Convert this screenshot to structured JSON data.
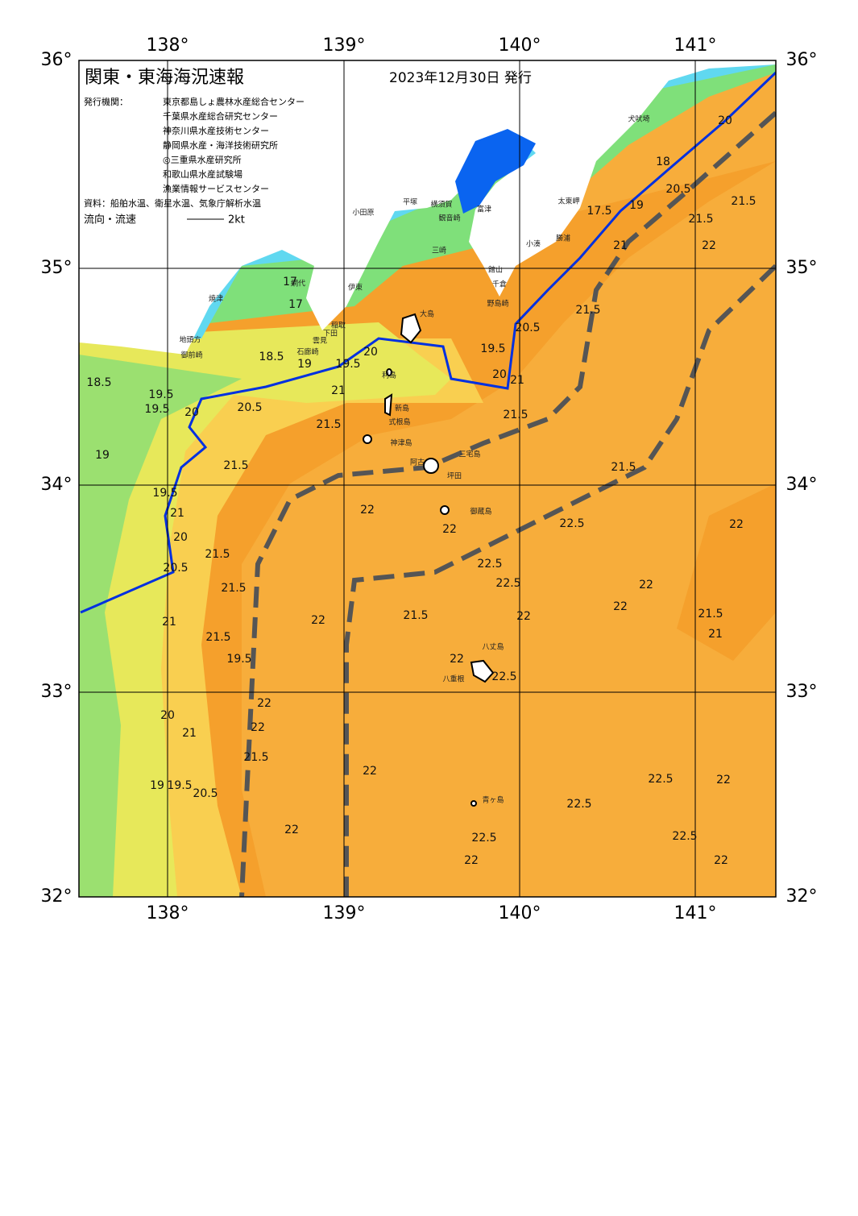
{
  "header": {
    "title": "関東・東海海況速報",
    "date": "2023年12月30日 発行",
    "issuer_label": "発行機関：",
    "issuers": [
      "東京都島しょ農林水産総合センター",
      "千葉県水産総合研究センター",
      "神奈川県水産技術センター",
      "静岡県水産・海洋技術研究所",
      "◎三重県水産研究所",
      "和歌山県水産試験場",
      "漁業情報サービスセンター"
    ],
    "source": "資料：船舶水温、衛星水温、気象庁解析水温",
    "current_label": "流向・流速",
    "current_scale": "2kt"
  },
  "axes": {
    "lon_top": [
      "138°",
      "139°",
      "140°",
      "141°"
    ],
    "lon_bottom": [
      "138°",
      "139°",
      "140°",
      "141°"
    ],
    "lat_left": [
      "36°",
      "35°",
      "34°",
      "33°",
      "32°"
    ],
    "lat_right": [
      "36°",
      "35°",
      "34°",
      "33°",
      "32°"
    ]
  },
  "places": [
    "犬吠埼",
    "太東岬",
    "勝浦",
    "小湊",
    "富津",
    "横須賀",
    "観音崎",
    "平塚",
    "小田原",
    "三崎",
    "館山",
    "千倉",
    "野島崎",
    "網代",
    "伊東",
    "稲取",
    "下田",
    "雲見",
    "石廊崎",
    "焼津",
    "地頭方",
    "御前崎",
    "大島",
    "利島",
    "新島",
    "式根島",
    "神津島",
    "三宅島",
    "阿古",
    "坪田",
    "御蔵島",
    "八丈島",
    "八重根",
    "青ヶ島"
  ],
  "contours": [
    "20",
    "18",
    "20.5",
    "17.5",
    "19",
    "21",
    "21.5",
    "21.5",
    "22",
    "21.5",
    "21",
    "20.5",
    "19.5",
    "20",
    "21.5",
    "17",
    "17",
    "18.5",
    "19",
    "19.5",
    "20",
    "21",
    "21.5",
    "20.5",
    "19.5",
    "18.5",
    "19.5",
    "20",
    "19",
    "21.5",
    "21.5",
    "22",
    "22",
    "22.5",
    "22",
    "19.5",
    "21",
    "20",
    "20.5",
    "21.5",
    "21.5",
    "22",
    "21.5",
    "19.5",
    "21",
    "21.5",
    "22",
    "22.5",
    "22.5",
    "22.5",
    "22",
    "22",
    "22",
    "21.5",
    "21",
    "22",
    "22",
    "21.5",
    "22",
    "22",
    "20",
    "21",
    "19.5",
    "20.5",
    "19",
    "22.5",
    "22.5",
    "22",
    "22.5",
    "22",
    "22.5",
    "22"
  ]
}
